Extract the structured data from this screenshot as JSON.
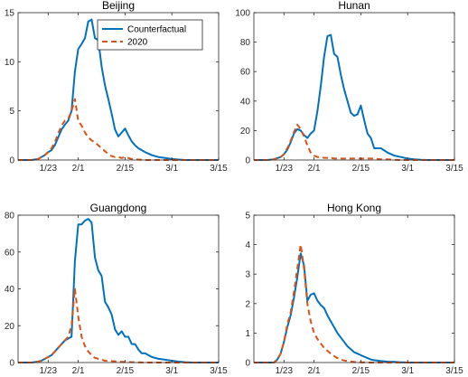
{
  "legend": {
    "counterfactual": "Counterfactual",
    "actual_2020": "2020"
  },
  "colors": {
    "counterfactual": "#0072BD",
    "actual_2020": "#D95319"
  },
  "chart_data": [
    {
      "type": "line",
      "title": "Beijing",
      "xlabel": "",
      "ylabel": "",
      "x_ticks": [
        "1/23",
        "2/1",
        "2/15",
        "3/1",
        "3/15"
      ],
      "x_tick_days": [
        23,
        32,
        46,
        60,
        74
      ],
      "xlim": [
        14,
        74
      ],
      "ylim": [
        0,
        15
      ],
      "y_ticks": [
        0,
        5,
        10,
        15
      ],
      "grid": false,
      "legend_position": "top-right",
      "series": [
        {
          "name": "Counterfactual",
          "style": "solid",
          "x": [
            14,
            16,
            18,
            20,
            21,
            22,
            23,
            24,
            25,
            26,
            27,
            28,
            29,
            30,
            31,
            32,
            33,
            34,
            35,
            36,
            37,
            38,
            39,
            40,
            41,
            42,
            43,
            44,
            45,
            46,
            47,
            48,
            49,
            50,
            52,
            54,
            56,
            58,
            60,
            62,
            64,
            66,
            68,
            70,
            72,
            74
          ],
          "y": [
            0,
            0,
            0,
            0.1,
            0.3,
            0.5,
            0.8,
            1.0,
            1.5,
            2.3,
            3.1,
            3.6,
            4.0,
            5.0,
            9.0,
            11.3,
            11.8,
            12.4,
            14.1,
            14.3,
            12.4,
            12.2,
            9.5,
            7.6,
            6.2,
            4.7,
            3.1,
            2.4,
            2.8,
            3.2,
            2.5,
            1.9,
            1.5,
            1.2,
            0.8,
            0.5,
            0.3,
            0.2,
            0.1,
            0.05,
            0,
            0,
            0,
            0,
            0,
            0
          ]
        },
        {
          "name": "2020",
          "style": "dashed",
          "x": [
            14,
            16,
            18,
            20,
            21,
            22,
            23,
            24,
            25,
            26,
            27,
            28,
            29,
            30,
            31,
            32,
            33,
            34,
            35,
            36,
            37,
            38,
            39,
            40,
            41,
            42,
            43,
            44,
            45,
            46,
            47,
            48,
            50,
            52,
            54,
            56,
            58,
            60,
            62,
            64,
            66,
            68,
            70,
            72,
            74
          ],
          "y": [
            0,
            0,
            0,
            0.1,
            0.3,
            0.5,
            0.8,
            1.2,
            1.8,
            2.7,
            3.5,
            4.0,
            4.2,
            5.0,
            6.2,
            4.0,
            3.5,
            2.8,
            2.3,
            2.0,
            1.8,
            1.5,
            1.2,
            0.9,
            0.6,
            0.4,
            0.3,
            0.3,
            0.2,
            0.3,
            0.2,
            0.1,
            0.05,
            0,
            0,
            0,
            0,
            0,
            0,
            0,
            0,
            0,
            0,
            0,
            0
          ]
        }
      ]
    },
    {
      "type": "line",
      "title": "Hunan",
      "xlabel": "",
      "ylabel": "",
      "x_ticks": [
        "1/23",
        "2/1",
        "2/15",
        "3/1",
        "3/15"
      ],
      "x_tick_days": [
        23,
        32,
        46,
        60,
        74
      ],
      "xlim": [
        14,
        74
      ],
      "ylim": [
        0,
        100
      ],
      "y_ticks": [
        0,
        20,
        40,
        60,
        80,
        100
      ],
      "grid": false,
      "series": [
        {
          "name": "Counterfactual",
          "style": "solid",
          "x": [
            14,
            16,
            18,
            20,
            22,
            23,
            24,
            25,
            26,
            27,
            28,
            29,
            30,
            31,
            32,
            33,
            34,
            35,
            36,
            37,
            38,
            39,
            40,
            41,
            42,
            43,
            44,
            45,
            46,
            47,
            48,
            49,
            50,
            52,
            54,
            56,
            58,
            60,
            62,
            64,
            66,
            68,
            70,
            72,
            74
          ],
          "y": [
            0,
            0,
            0,
            0.5,
            2,
            4,
            7,
            12,
            18,
            21,
            20,
            17,
            15,
            18,
            20,
            33,
            50,
            70,
            84,
            85,
            72,
            70,
            58,
            48,
            40,
            32,
            30,
            31,
            37,
            27,
            18,
            15,
            8,
            8,
            5,
            3,
            2,
            1,
            0.5,
            0.2,
            0,
            0,
            0,
            0,
            0
          ]
        },
        {
          "name": "2020",
          "style": "dashed",
          "x": [
            14,
            16,
            18,
            20,
            22,
            23,
            24,
            25,
            26,
            27,
            28,
            29,
            30,
            31,
            32,
            33,
            34,
            35,
            36,
            37,
            38,
            39,
            40,
            42,
            44,
            46,
            48,
            50,
            52,
            54,
            56,
            58,
            60,
            62,
            64,
            66,
            68,
            70,
            72,
            74
          ],
          "y": [
            0,
            0,
            0,
            0.5,
            2,
            4,
            8,
            13,
            19,
            24,
            21,
            16,
            10,
            5,
            3,
            2,
            2,
            1.5,
            1.5,
            1.5,
            1,
            1,
            1,
            1,
            1,
            1,
            1,
            1,
            0.5,
            0.5,
            0.2,
            0,
            0,
            0,
            0,
            0,
            0,
            0,
            0,
            0
          ]
        }
      ]
    },
    {
      "type": "line",
      "title": "Guangdong",
      "xlabel": "",
      "ylabel": "",
      "x_ticks": [
        "1/23",
        "2/1",
        "2/15",
        "3/1",
        "3/15"
      ],
      "x_tick_days": [
        23,
        32,
        46,
        60,
        74
      ],
      "xlim": [
        14,
        74
      ],
      "ylim": [
        0,
        80
      ],
      "y_ticks": [
        0,
        20,
        40,
        60,
        80
      ],
      "grid": false,
      "series": [
        {
          "name": "Counterfactual",
          "style": "solid",
          "x": [
            14,
            16,
            18,
            20,
            21,
            22,
            23,
            24,
            25,
            26,
            27,
            28,
            29,
            30,
            31,
            32,
            33,
            34,
            35,
            36,
            37,
            38,
            39,
            40,
            41,
            42,
            43,
            44,
            45,
            46,
            47,
            48,
            49,
            50,
            51,
            52,
            54,
            56,
            58,
            60,
            62,
            64,
            66,
            68,
            70,
            72,
            74
          ],
          "y": [
            0,
            0,
            0,
            0.5,
            1,
            2,
            3,
            4,
            6,
            8,
            10,
            12,
            13,
            14,
            55,
            75,
            75,
            77,
            78,
            76,
            57,
            50,
            47,
            33,
            30,
            26,
            18,
            15,
            17,
            14,
            14,
            10,
            10,
            7,
            5,
            5,
            3,
            2,
            1.5,
            1,
            0.5,
            0.2,
            0,
            0,
            0,
            0,
            0
          ]
        },
        {
          "name": "2020",
          "style": "dashed",
          "x": [
            14,
            16,
            18,
            20,
            21,
            22,
            23,
            24,
            25,
            26,
            27,
            28,
            29,
            30,
            31,
            32,
            33,
            34,
            35,
            36,
            37,
            38,
            39,
            40,
            42,
            44,
            46,
            48,
            50,
            52,
            54,
            56,
            58,
            60,
            62,
            64,
            66,
            68,
            70,
            72,
            74
          ],
          "y": [
            0,
            0,
            0,
            0.5,
            1,
            2,
            3,
            4,
            6,
            8,
            10,
            12,
            14,
            20,
            40,
            25,
            14,
            9,
            6,
            4,
            2.5,
            2,
            1.5,
            1,
            0.8,
            0.5,
            0.3,
            0.2,
            0.1,
            0,
            0,
            0,
            0,
            0,
            0,
            0,
            0,
            0,
            0,
            0,
            0
          ]
        }
      ]
    },
    {
      "type": "line",
      "title": "Hong Kong",
      "xlabel": "",
      "ylabel": "",
      "x_ticks": [
        "1/23",
        "2/1",
        "2/15",
        "3/1",
        "3/15"
      ],
      "x_tick_days": [
        23,
        32,
        46,
        60,
        74
      ],
      "xlim": [
        14,
        74
      ],
      "ylim": [
        0,
        5
      ],
      "y_ticks": [
        0,
        1,
        2,
        3,
        4,
        5
      ],
      "grid": false,
      "series": [
        {
          "name": "Counterfactual",
          "style": "solid",
          "x": [
            14,
            16,
            18,
            20,
            21,
            22,
            23,
            24,
            25,
            26,
            27,
            28,
            29,
            30,
            31,
            32,
            33,
            34,
            35,
            36,
            37,
            38,
            39,
            40,
            41,
            42,
            43,
            44,
            45,
            46,
            47,
            48,
            49,
            50,
            52,
            54,
            56,
            58,
            60,
            62,
            64,
            66,
            68,
            70,
            72,
            74
          ],
          "y": [
            0,
            0,
            0,
            0,
            0.1,
            0.3,
            0.7,
            1.2,
            1.6,
            2.2,
            2.9,
            3.7,
            3.3,
            2.1,
            2.3,
            2.35,
            2.1,
            1.95,
            1.85,
            1.6,
            1.4,
            1.2,
            1.0,
            0.85,
            0.7,
            0.55,
            0.45,
            0.35,
            0.3,
            0.25,
            0.2,
            0.15,
            0.1,
            0.08,
            0.05,
            0.03,
            0.02,
            0.01,
            0,
            0,
            0,
            0,
            0,
            0,
            0,
            0
          ]
        },
        {
          "name": "2020",
          "style": "dashed",
          "x": [
            14,
            16,
            18,
            20,
            21,
            22,
            23,
            24,
            25,
            26,
            27,
            28,
            29,
            30,
            31,
            32,
            33,
            34,
            35,
            36,
            37,
            38,
            39,
            40,
            41,
            42,
            43,
            44,
            46,
            48,
            50,
            52,
            54,
            56,
            58,
            60,
            62,
            64,
            66,
            68,
            70,
            72,
            74
          ],
          "y": [
            0,
            0,
            0,
            0,
            0.1,
            0.3,
            0.7,
            1.3,
            1.7,
            2.4,
            3.2,
            4.0,
            3.2,
            2.0,
            1.4,
            1.0,
            0.8,
            0.65,
            0.5,
            0.4,
            0.3,
            0.22,
            0.15,
            0.1,
            0.07,
            0.05,
            0.03,
            0.02,
            0.01,
            0,
            0,
            0,
            0,
            0,
            0,
            0,
            0,
            0,
            0,
            0,
            0,
            0,
            0
          ]
        }
      ]
    }
  ]
}
